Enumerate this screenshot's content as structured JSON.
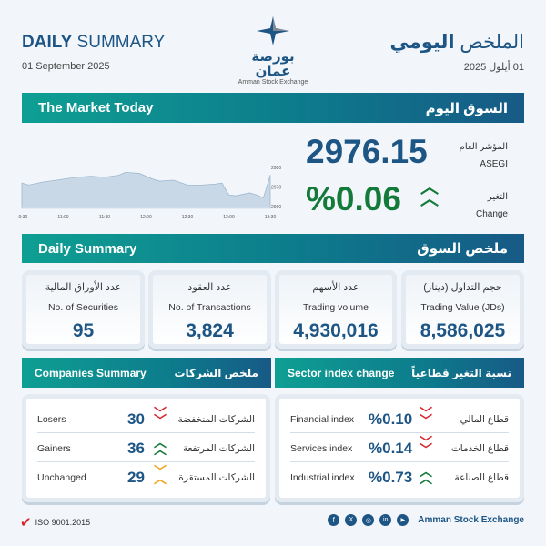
{
  "header": {
    "title_bold": "DAILY",
    "title_rest": "SUMMARY",
    "date_en": "01 September 2025",
    "title_ar_light": "الملخص",
    "title_ar_bold": "اليومي",
    "date_ar": "01 أيلول 2025",
    "logo_ar": "بورصة عمان",
    "logo_en": "Amman Stock Exchange"
  },
  "market_today": {
    "title_en": "The Market Today",
    "title_ar": "السوق اليوم",
    "index_label_ar": "المؤشر العام",
    "index_label_en": "ASEGI",
    "index_value": "2976.15",
    "change_label_ar": "التغير",
    "change_label_en": "Change",
    "change_value": "%0.06",
    "change_direction": "up"
  },
  "chart_data": {
    "type": "area",
    "x": [
      "10:30",
      "10:35",
      "10:45",
      "11:00",
      "11:10",
      "11:20",
      "11:30",
      "11:40",
      "11:45",
      "11:55",
      "12:05",
      "12:10",
      "12:20",
      "12:30",
      "12:40",
      "12:50",
      "12:55",
      "13:00",
      "13:05",
      "13:15",
      "13:20",
      "13:25",
      "13:27",
      "13:30"
    ],
    "values": [
      2972,
      2971,
      2972.5,
      2974,
      2975,
      2975.5,
      2975,
      2976,
      2977.5,
      2977,
      2974,
      2973,
      2973.5,
      2971,
      2971,
      2971.5,
      2972,
      2966,
      2965.5,
      2967,
      2966,
      2964.5,
      2969,
      2976.15
    ],
    "x_ticks": [
      "10:30",
      "11:00",
      "11:30",
      "12:00",
      "12:30",
      "13:00",
      "13:30"
    ],
    "y_ticks": [
      "2960",
      "2970",
      "2980"
    ],
    "ylim": [
      2960,
      2980
    ],
    "fill": "#c9d8e6",
    "line": "#9fb8cf"
  },
  "daily_summary": {
    "title_en": "Daily Summary",
    "title_ar": "ملخص السوق",
    "cards": [
      {
        "ar": "عدد الأوراق المالية",
        "en": "No. of Securities",
        "value": "95"
      },
      {
        "ar": "عدد العقود",
        "en": "No. of Transactions",
        "value": "3,824"
      },
      {
        "ar": "عدد الأسهم",
        "en": "Trading volume",
        "value": "4,930,016"
      },
      {
        "ar": "حجم التداول (دينار)",
        "en": "Trading Value (JDs)",
        "value": "8,586,025"
      }
    ]
  },
  "companies": {
    "title_en": "Companies Summary",
    "title_ar": "ملخص الشركات",
    "rows": [
      {
        "en": "Losers",
        "value": "30",
        "ar": "الشركات المنخفضة",
        "icon": "chevron-double-down"
      },
      {
        "en": "Gainers",
        "value": "36",
        "ar": "الشركات المرتفعة",
        "icon": "chevron-double-up"
      },
      {
        "en": "Unchanged",
        "value": "29",
        "ar": "الشركات المستقرة",
        "icon": "unchanged"
      }
    ]
  },
  "sectors": {
    "title_en": "Sector index change",
    "title_ar": "نسبة التغير قطاعياً",
    "rows": [
      {
        "en": "Financial index",
        "value": "%0.10",
        "ar": "قطاع المالي",
        "icon": "chevron-double-down"
      },
      {
        "en": "Services index",
        "value": "%0.14",
        "ar": "قطاع الخدمات",
        "icon": "chevron-double-down"
      },
      {
        "en": "Industrial index",
        "value": "%0.73",
        "ar": "قطاع الصناعة",
        "icon": "chevron-double-up"
      }
    ]
  },
  "footer": {
    "iso": "ISO 9001:2015",
    "org": "Amman Stock Exchange",
    "social": [
      "facebook",
      "x",
      "instagram",
      "linkedin",
      "youtube"
    ]
  },
  "colors": {
    "navy": "#1d5585",
    "teal": "#0e9f93",
    "green": "#137a3a",
    "red": "#d8232a",
    "orange": "#f0a41c"
  }
}
